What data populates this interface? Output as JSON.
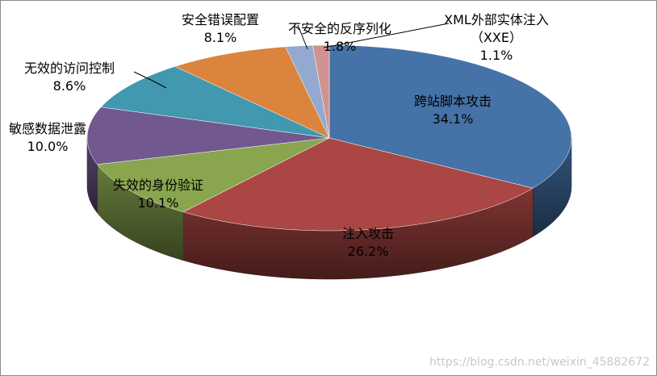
{
  "chart_data": {
    "type": "pie3d",
    "categories": [
      "跨站脚本攻击",
      "注入攻击",
      "失效的身份验证",
      "敏感数据泄露",
      "无效的访问控制",
      "安全错误配置",
      "不安全的反序列化",
      "XML外部实体注入（XXE）"
    ],
    "values": [
      34.1,
      26.2,
      10.1,
      10.0,
      8.6,
      8.1,
      1.8,
      1.1
    ],
    "value_labels": [
      "34.1%",
      "26.2%",
      "10.1%",
      "10.0%",
      "8.6%",
      "8.1%",
      "1.8%",
      "1.1%"
    ],
    "colors": [
      "#4572a7",
      "#aa4643",
      "#89a54e",
      "#71588f",
      "#4198af",
      "#db843d",
      "#93a9cf",
      "#d19392"
    ]
  },
  "watermark": "https://blog.csdn.net/weixin_45882672"
}
